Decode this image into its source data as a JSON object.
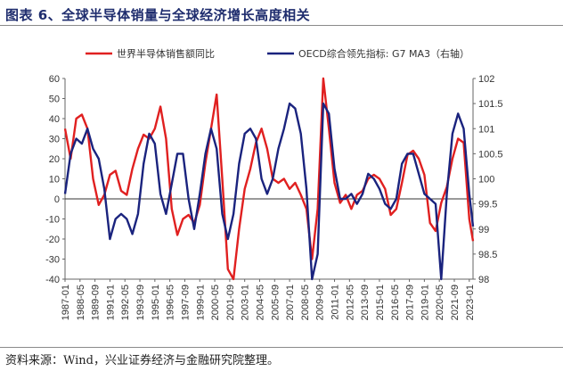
{
  "header": {
    "title": "图表 6、全球半导体销量与全球经济增长高度相关"
  },
  "footer": {
    "source": "资料来源：Wind，兴业证券经济与金融研究院整理。"
  },
  "colors": {
    "left_series": "#e02020",
    "right_series": "#1a237e",
    "axis": "#666666"
  },
  "chart_data": {
    "type": "line",
    "title": "",
    "left_axis": {
      "ylim": [
        -40,
        60
      ],
      "ticks": [
        -40,
        -30,
        -20,
        -10,
        0,
        10,
        20,
        30,
        40,
        50,
        60
      ]
    },
    "right_axis": {
      "ylim": [
        98,
        102
      ],
      "ticks": [
        "98",
        "98.5",
        "99",
        "99.5",
        "100",
        "100.5",
        "101",
        "101.5",
        "102"
      ],
      "tick_values": [
        98,
        98.5,
        99,
        99.5,
        100,
        100.5,
        101,
        101.5,
        102
      ]
    },
    "x_range": [
      "1987-01",
      "2023-05"
    ],
    "x_ticks": [
      "1987-01",
      "1988-05",
      "1989-09",
      "1991-01",
      "1992-05",
      "1993-09",
      "1995-01",
      "1996-05",
      "1997-09",
      "1999-01",
      "2000-05",
      "2001-09",
      "2003-01",
      "2004-05",
      "2005-09",
      "2007-01",
      "2008-05",
      "2009-09",
      "2011-01",
      "2012-05",
      "2013-09",
      "2015-01",
      "2016-05",
      "2017-09",
      "2019-01",
      "2020-05",
      "2021-09",
      "2023-01"
    ],
    "series": [
      {
        "name": "世界半导体销售额同比",
        "axis": "left",
        "x": [
          "1987-01",
          "1987-07",
          "1988-01",
          "1988-07",
          "1989-01",
          "1989-07",
          "1990-01",
          "1990-07",
          "1991-01",
          "1991-07",
          "1992-01",
          "1992-07",
          "1993-01",
          "1993-07",
          "1994-01",
          "1994-07",
          "1995-01",
          "1995-07",
          "1996-01",
          "1996-07",
          "1997-01",
          "1997-07",
          "1998-01",
          "1998-07",
          "1999-01",
          "1999-07",
          "2000-01",
          "2000-07",
          "2001-01",
          "2001-07",
          "2002-01",
          "2002-07",
          "2003-01",
          "2003-07",
          "2004-01",
          "2004-07",
          "2005-01",
          "2005-07",
          "2006-01",
          "2006-07",
          "2007-01",
          "2007-07",
          "2008-01",
          "2008-07",
          "2009-01",
          "2009-07",
          "2010-01",
          "2010-07",
          "2011-01",
          "2011-07",
          "2012-01",
          "2012-07",
          "2013-01",
          "2013-07",
          "2014-01",
          "2014-07",
          "2015-01",
          "2015-07",
          "2016-01",
          "2016-07",
          "2017-01",
          "2017-07",
          "2018-01",
          "2018-07",
          "2019-01",
          "2019-07",
          "2020-01",
          "2020-07",
          "2021-01",
          "2021-07",
          "2022-01",
          "2022-07",
          "2023-01",
          "2023-05"
        ],
        "values": [
          35,
          20,
          40,
          42,
          35,
          10,
          -3,
          2,
          12,
          14,
          4,
          2,
          15,
          25,
          32,
          30,
          35,
          46,
          30,
          -5,
          -18,
          -10,
          -8,
          -12,
          -3,
          18,
          35,
          52,
          10,
          -35,
          -42,
          -15,
          5,
          15,
          28,
          35,
          25,
          10,
          8,
          10,
          5,
          8,
          2,
          -5,
          -30,
          -5,
          60,
          35,
          8,
          -2,
          2,
          -5,
          2,
          4,
          10,
          12,
          10,
          5,
          -8,
          -5,
          8,
          22,
          24,
          20,
          12,
          -12,
          -16,
          -2,
          6,
          20,
          30,
          28,
          -10,
          -21
        ]
      },
      {
        "name": "OECD综合领先指标: G7 MA3（右轴）",
        "axis": "right",
        "x": [
          "1987-01",
          "1987-07",
          "1988-01",
          "1988-07",
          "1989-01",
          "1989-07",
          "1990-01",
          "1990-07",
          "1991-01",
          "1991-07",
          "1992-01",
          "1992-07",
          "1993-01",
          "1993-07",
          "1994-01",
          "1994-07",
          "1995-01",
          "1995-07",
          "1996-01",
          "1996-07",
          "1997-01",
          "1997-07",
          "1998-01",
          "1998-07",
          "1999-01",
          "1999-07",
          "2000-01",
          "2000-07",
          "2001-01",
          "2001-07",
          "2002-01",
          "2002-07",
          "2003-01",
          "2003-07",
          "2004-01",
          "2004-07",
          "2005-01",
          "2005-07",
          "2006-01",
          "2006-07",
          "2007-01",
          "2007-07",
          "2008-01",
          "2008-07",
          "2009-01",
          "2009-07",
          "2010-01",
          "2010-07",
          "2011-01",
          "2011-07",
          "2012-01",
          "2012-07",
          "2013-01",
          "2013-07",
          "2014-01",
          "2014-07",
          "2015-01",
          "2015-07",
          "2016-01",
          "2016-07",
          "2017-01",
          "2017-07",
          "2018-01",
          "2018-07",
          "2019-01",
          "2019-07",
          "2020-01",
          "2020-07",
          "2021-01",
          "2021-07",
          "2022-01",
          "2022-07",
          "2023-01",
          "2023-05"
        ],
        "values": [
          99.7,
          100.5,
          100.8,
          100.7,
          101.0,
          100.6,
          100.4,
          99.8,
          98.8,
          99.2,
          99.3,
          99.2,
          98.9,
          99.3,
          100.3,
          100.9,
          100.7,
          99.7,
          99.3,
          99.9,
          100.5,
          100.5,
          99.6,
          99.0,
          99.7,
          100.5,
          101.0,
          100.6,
          99.3,
          98.8,
          99.3,
          100.3,
          100.9,
          101.0,
          100.8,
          100.0,
          99.7,
          100.0,
          100.6,
          101.0,
          101.5,
          101.4,
          100.9,
          99.8,
          98.0,
          98.5,
          101.5,
          101.3,
          100.2,
          99.6,
          99.6,
          99.7,
          99.5,
          99.7,
          100.1,
          100.0,
          99.8,
          99.5,
          99.4,
          99.6,
          100.3,
          100.5,
          100.5,
          100.1,
          99.7,
          99.6,
          99.5,
          98.0,
          99.7,
          100.9,
          101.3,
          101.0,
          99.7,
          99.05
        ]
      }
    ],
    "legend": {
      "placement": "top"
    }
  }
}
